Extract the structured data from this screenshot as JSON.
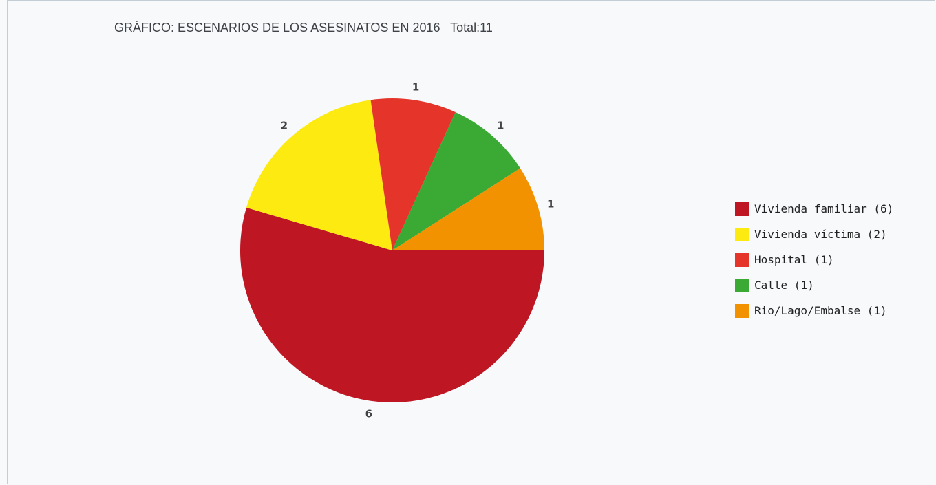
{
  "chart_data": {
    "type": "pie",
    "title": "GRÁFICO: ESCENARIOS DE LOS ASESINATOS EN 2016   Total:11",
    "categories": [
      "Vivienda familiar",
      "Vivienda víctima",
      "Hospital",
      "Calle",
      "Rio/Lago/Embalse"
    ],
    "values": [
      6,
      2,
      1,
      1,
      1
    ],
    "data_labels": [
      "6",
      "2",
      "1",
      "1",
      "1"
    ],
    "colors": [
      "#be1622",
      "#fcea10",
      "#e5352a",
      "#3aaa35",
      "#f39200"
    ],
    "legend": {
      "placement": "right",
      "entries": [
        "Vivienda familiar (6)",
        "Vivienda víctima (2)",
        "Hospital (1)",
        "Calle (1)",
        "Rio/Lago/Embalse (1)"
      ]
    }
  }
}
